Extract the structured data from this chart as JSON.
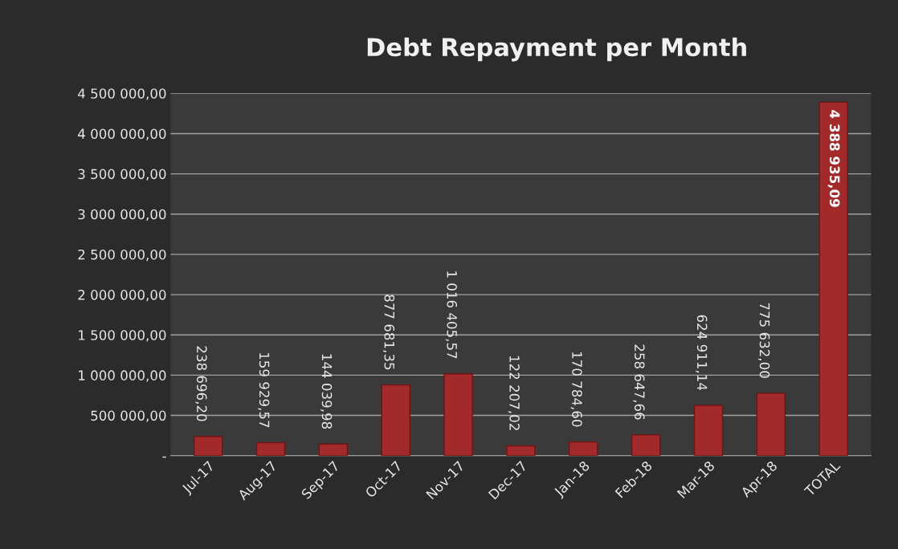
{
  "chart_data": {
    "type": "bar",
    "title": "Debt Repayment per Month",
    "categories": [
      "Jul-17",
      "Aug-17",
      "Sep-17",
      "Oct-17",
      "Nov-17",
      "Dec-17",
      "Jan-18",
      "Feb-18",
      "Mar-18",
      "Apr-18",
      "TOTAL"
    ],
    "values": [
      238696.2,
      159929.57,
      144039.98,
      877681.35,
      1016405.57,
      122207.02,
      170784.6,
      258647.66,
      624911.14,
      775632.0,
      4388935.09
    ],
    "value_labels": [
      "238 696,20",
      "159 929,57",
      "144 039,98",
      "877 681,35",
      "1 016 405,57",
      "122 207,02",
      "170 784,60",
      "258 647,66",
      "624 911,14",
      "775 632,00",
      "4 388 935,09"
    ],
    "color": "#a32a2a",
    "ylim": [
      0,
      4500000
    ],
    "yticks": [
      {
        "value": 0,
        "label": "-"
      },
      {
        "value": 500000,
        "label": "500 000,00"
      },
      {
        "value": 1000000,
        "label": "1 000 000,00"
      },
      {
        "value": 1500000,
        "label": "1 500 000,00"
      },
      {
        "value": 2000000,
        "label": "2 000 000,00"
      },
      {
        "value": 2500000,
        "label": "2 500 000,00"
      },
      {
        "value": 3000000,
        "label": "3 000 000,00"
      },
      {
        "value": 3500000,
        "label": "3 500 000,00"
      },
      {
        "value": 4000000,
        "label": "4 000 000,00"
      },
      {
        "value": 4500000,
        "label": "4 500 000,00"
      }
    ],
    "grid": "y",
    "legend": false
  }
}
